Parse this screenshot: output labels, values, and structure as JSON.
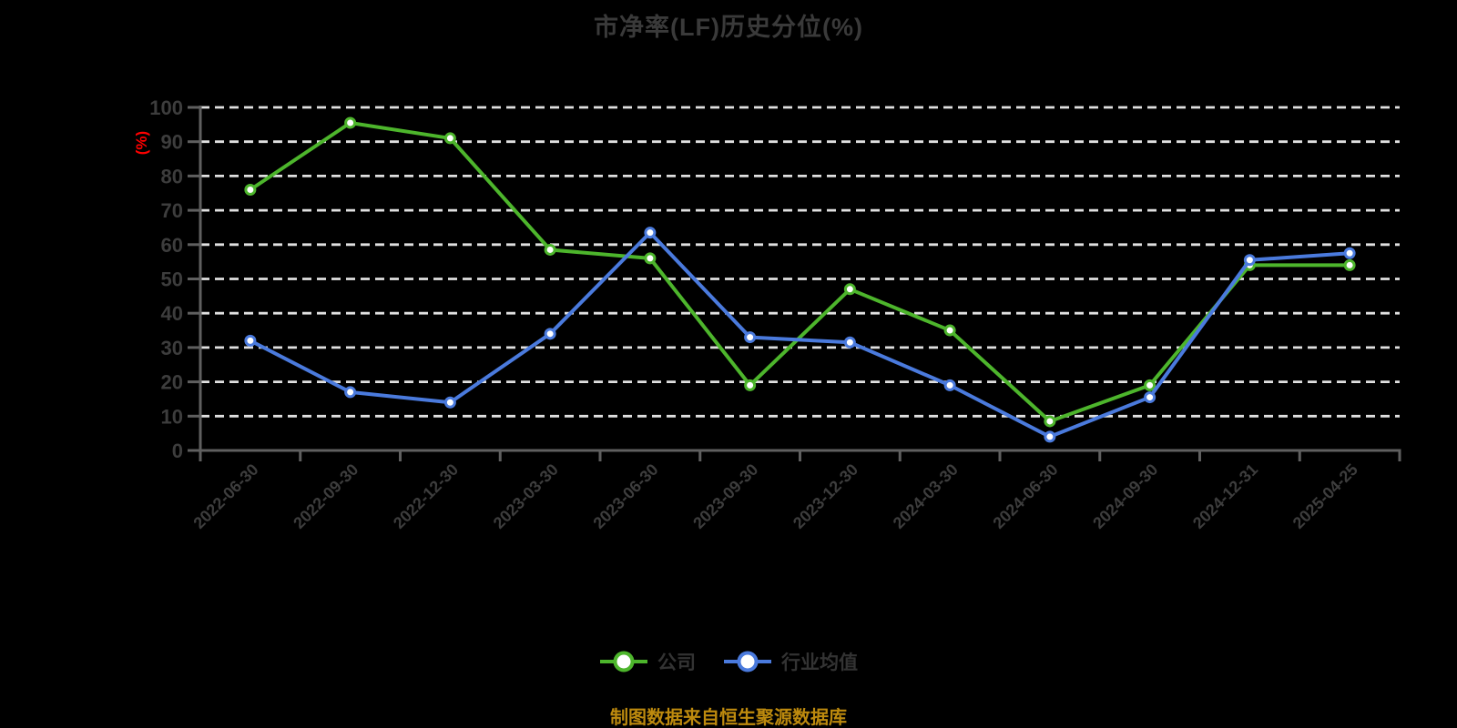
{
  "title": "市净率(LF)历史分位(%)",
  "y_axis": {
    "unit_label": "(%)",
    "unit_color": "#ff0000",
    "tick_labels": [
      "0",
      "10",
      "20",
      "30",
      "40",
      "50",
      "60",
      "70",
      "80",
      "90",
      "100"
    ]
  },
  "legend": [
    {
      "id": "company",
      "label": "公司"
    },
    {
      "id": "industry-average",
      "label": "行业均值"
    }
  ],
  "footer": {
    "source_note": "制图数据来自恒生聚源数据库"
  },
  "colors": {
    "background": "#000000",
    "grid_line": "#e0e0e0",
    "axis_line": "#5f5f5f",
    "tick_label": "#3d3d3d",
    "title": "#3a3a3a",
    "legend_label": "#333333",
    "source_note": "#bd8a0e",
    "marker_fill": "#ffffff"
  },
  "chart_data": {
    "type": "line",
    "title": "市净率(LF)历史分位(%)",
    "categories": [
      "2022-06-30",
      "2022-09-30",
      "2022-12-30",
      "2023-03-30",
      "2023-06-30",
      "2023-09-30",
      "2023-12-30",
      "2024-03-30",
      "2024-06-30",
      "2024-09-30",
      "2024-12-31",
      "2025-04-25"
    ],
    "series": [
      {
        "id": "company",
        "name": "公司",
        "color": "#4db52c",
        "values": [
          76,
          95.5,
          91,
          58.5,
          56,
          19,
          47,
          35,
          8.5,
          19,
          54,
          54
        ]
      },
      {
        "id": "industry-average",
        "name": "行业均值",
        "color": "#4a7add",
        "values": [
          32,
          17,
          14,
          34,
          63.5,
          33,
          31.5,
          19,
          4,
          15.5,
          55.5,
          57.5
        ]
      }
    ],
    "xlabel": "",
    "ylabel": "(%)",
    "ylim": [
      0,
      100
    ],
    "y_ticks": [
      0,
      10,
      20,
      30,
      40,
      50,
      60,
      70,
      80,
      90,
      100
    ],
    "grid": "horizontal-dashed",
    "legend_position": "bottom",
    "x_label_rotation": -45,
    "marker": "circle-white-fill"
  }
}
